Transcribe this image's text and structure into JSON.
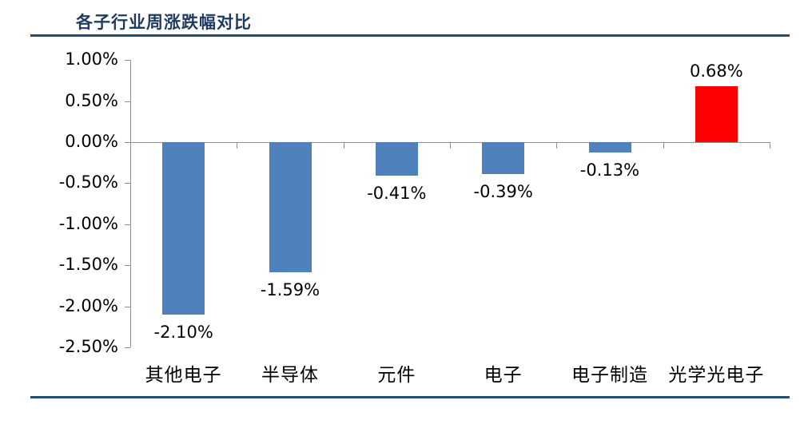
{
  "page": {
    "background": "#FFFFFF"
  },
  "colors": {
    "title_text": "#1F3A5F",
    "rule_line": "#1F4E79",
    "axis_line": "#8E8E8E",
    "label_text": "#000000",
    "negative_bar": "#4F81BD",
    "positive_bar": "#FF0000"
  },
  "chart_data": {
    "type": "bar",
    "title": "各子行业周涨跌幅对比",
    "xlabel": "",
    "ylabel": "",
    "ylim": [
      -2.5,
      1.0
    ],
    "ytick_step": 0.5,
    "grid": false,
    "legend": false,
    "value_unit": "%",
    "yticks": [
      {
        "value": 1.0,
        "label": "1.00%"
      },
      {
        "value": 0.5,
        "label": "0.50%"
      },
      {
        "value": 0.0,
        "label": "0.00%"
      },
      {
        "value": -0.5,
        "label": "-0.50%"
      },
      {
        "value": -1.0,
        "label": "-1.00%"
      },
      {
        "value": -1.5,
        "label": "-1.50%"
      },
      {
        "value": -2.0,
        "label": "-2.00%"
      },
      {
        "value": -2.5,
        "label": "-2.50%"
      }
    ],
    "categories": [
      "其他电子",
      "半导体",
      "元件",
      "电子",
      "电子制造",
      "光学光电子"
    ],
    "values": [
      -2.1,
      -1.59,
      -0.41,
      -0.39,
      -0.13,
      0.68
    ],
    "points": [
      {
        "category": "其他电子",
        "value": -2.1,
        "label": "-2.10%",
        "color": "#4F81BD"
      },
      {
        "category": "半导体",
        "value": -1.59,
        "label": "-1.59%",
        "color": "#4F81BD"
      },
      {
        "category": "元件",
        "value": -0.41,
        "label": "-0.41%",
        "color": "#4F81BD"
      },
      {
        "category": "电子",
        "value": -0.39,
        "label": "-0.39%",
        "color": "#4F81BD"
      },
      {
        "category": "电子制造",
        "value": -0.13,
        "label": "-0.13%",
        "color": "#4F81BD"
      },
      {
        "category": "光学光电子",
        "value": 0.68,
        "label": "0.68%",
        "color": "#FF0000"
      }
    ]
  }
}
